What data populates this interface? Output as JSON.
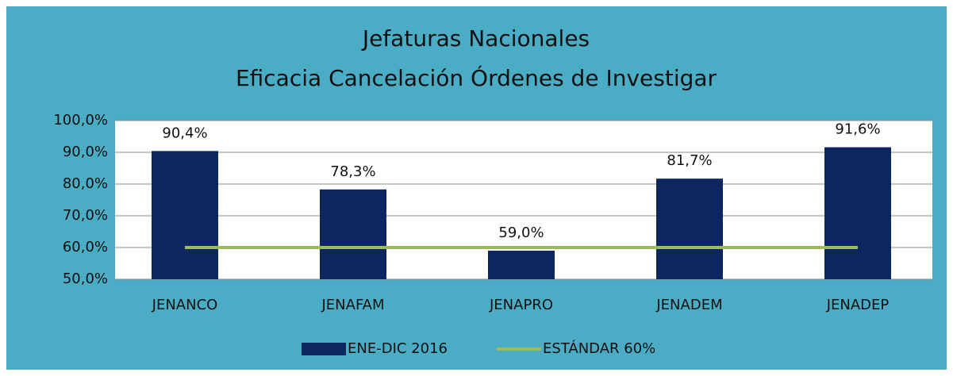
{
  "chart_data": {
    "type": "bar_line",
    "title": "Jefaturas Nacionales",
    "subtitle": "Eficacia Cancelación Órdenes de Investigar",
    "categories": [
      "JENANCO",
      "JENAFAM",
      "JENAPRO",
      "JENADEM",
      "JENADEP"
    ],
    "series": [
      {
        "name": "ENE-DIC 2016",
        "type": "bar",
        "color": "#0d2660",
        "values": [
          90.4,
          78.3,
          59.0,
          81.7,
          91.6
        ],
        "value_labels": [
          "90,4%",
          "78,3%",
          "59,0%",
          "81,7%",
          "91,6%"
        ]
      },
      {
        "name": "ESTÁNDAR 60%",
        "type": "line",
        "color": "#9bbb59",
        "values": [
          60,
          60,
          60,
          60,
          60
        ]
      }
    ],
    "ylim": [
      50,
      100
    ],
    "yticks": [
      {
        "value": 50,
        "label": "50,0%"
      },
      {
        "value": 60,
        "label": "60,0%"
      },
      {
        "value": 70,
        "label": "70,0%"
      },
      {
        "value": 80,
        "label": "80,0%"
      },
      {
        "value": 90,
        "label": "90,0%"
      },
      {
        "value": 100,
        "label": "100,0%"
      }
    ],
    "grid": true,
    "legend": "bottom"
  }
}
